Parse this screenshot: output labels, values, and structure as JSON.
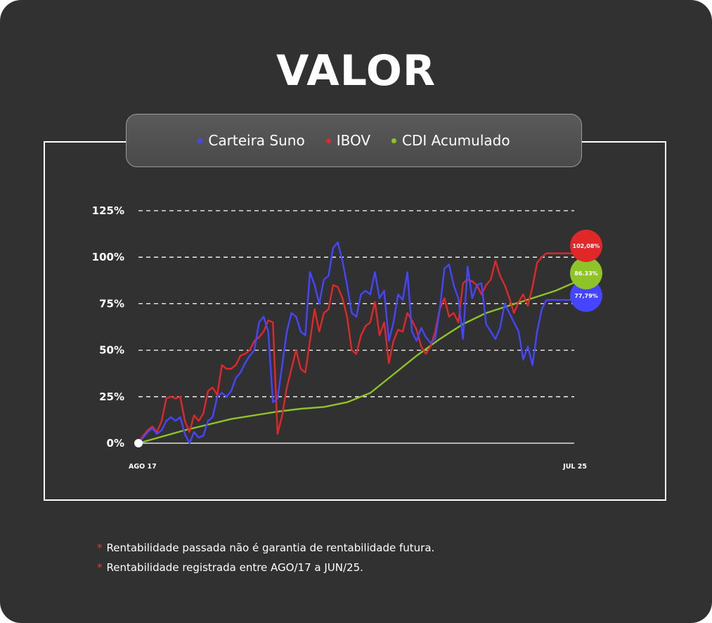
{
  "title": "VALOR",
  "legend": [
    {
      "label": "Carteira Suno",
      "color": "#4545ff"
    },
    {
      "label": "IBOV",
      "color": "#e02828"
    },
    {
      "label": "CDI Acumulado",
      "color": "#8ec32a"
    }
  ],
  "notes": [
    "Rentabilidade passada não é garantia de rentabilidade futura.",
    "Rentabilidade registrada entre AGO/17 a JUN/25."
  ],
  "chart_data": {
    "type": "line",
    "ylim": [
      0,
      125
    ],
    "yticks": [
      "0%",
      "25%",
      "50%",
      "75%",
      "100%",
      "125%"
    ],
    "ytick_values": [
      0,
      25,
      50,
      75,
      100,
      125
    ],
    "xlim": [
      0,
      94
    ],
    "xlabels": [
      {
        "x": 0,
        "label": "AGO 17"
      },
      {
        "x": 94,
        "label": "JUL 25"
      }
    ],
    "grid": "horizontal dashed",
    "series": [
      {
        "name": "Carteira Suno",
        "color": "#4545ff",
        "end_label": "77,79%",
        "x": [
          0,
          1,
          2,
          3,
          4,
          5,
          6,
          7,
          8,
          9,
          10,
          11,
          12,
          13,
          14,
          15,
          16,
          17,
          18,
          19,
          20,
          21,
          22,
          23,
          24,
          25,
          26,
          27,
          28,
          29,
          30,
          31,
          32,
          33,
          34,
          35,
          36,
          37,
          38,
          39,
          40,
          41,
          42,
          43,
          44,
          45,
          46,
          47,
          48,
          49,
          50,
          51,
          52,
          53,
          54,
          55,
          56,
          57,
          58,
          59,
          60,
          61,
          62,
          63,
          64,
          65,
          66,
          67,
          68,
          69,
          70,
          71,
          72,
          73,
          74,
          75,
          76,
          77,
          78,
          79,
          80,
          81,
          82,
          83,
          84,
          85,
          86,
          87,
          88,
          89,
          90,
          91,
          92,
          93,
          94
        ],
        "y": [
          0,
          3,
          6,
          8,
          5,
          7,
          12,
          14,
          12,
          14,
          5,
          0,
          6,
          3,
          4,
          12,
          14,
          25,
          27,
          25,
          28,
          35,
          38,
          43,
          47,
          50,
          65,
          68,
          60,
          22,
          24,
          42,
          60,
          70,
          68,
          60,
          58,
          92,
          85,
          75,
          88,
          90,
          105,
          108,
          98,
          85,
          70,
          68,
          80,
          82,
          80,
          92,
          78,
          82,
          55,
          65,
          80,
          77,
          92,
          60,
          55,
          62,
          57,
          54,
          56,
          72,
          94,
          96,
          85,
          78,
          56,
          95,
          78,
          85,
          86,
          64,
          60,
          56,
          62,
          75,
          70,
          65,
          60,
          45,
          52,
          42,
          60,
          72,
          77,
          77,
          77,
          77,
          77,
          77,
          77.79
        ]
      },
      {
        "name": "IBOV",
        "color": "#e02828",
        "end_label": "102,08%",
        "x": [
          0,
          1,
          2,
          3,
          4,
          5,
          6,
          7,
          8,
          9,
          10,
          11,
          12,
          13,
          14,
          15,
          16,
          17,
          18,
          19,
          20,
          21,
          22,
          23,
          24,
          25,
          26,
          27,
          28,
          29,
          30,
          31,
          32,
          33,
          34,
          35,
          36,
          37,
          38,
          39,
          40,
          41,
          42,
          43,
          44,
          45,
          46,
          47,
          48,
          49,
          50,
          51,
          52,
          53,
          54,
          55,
          56,
          57,
          58,
          59,
          60,
          61,
          62,
          63,
          64,
          65,
          66,
          67,
          68,
          69,
          70,
          71,
          72,
          73,
          74,
          75,
          76,
          77,
          78,
          79,
          80,
          81,
          82,
          83,
          84,
          85,
          86,
          87,
          88,
          89,
          90,
          91,
          92,
          93,
          94
        ],
        "y": [
          0,
          4,
          7,
          9,
          6,
          12,
          24,
          25,
          24,
          25,
          12,
          6,
          15,
          12,
          16,
          28,
          30,
          26,
          42,
          40,
          40,
          42,
          47,
          48,
          50,
          55,
          57,
          60,
          66,
          65,
          5,
          15,
          30,
          40,
          50,
          40,
          38,
          55,
          72,
          60,
          70,
          72,
          85,
          84,
          78,
          68,
          50,
          48,
          58,
          63,
          65,
          76,
          58,
          65,
          43,
          55,
          61,
          60,
          70,
          66,
          61,
          52,
          48,
          52,
          60,
          72,
          78,
          68,
          70,
          65,
          86,
          88,
          87,
          85,
          80,
          85,
          88,
          98,
          90,
          85,
          78,
          70,
          76,
          80,
          74,
          84,
          97,
          100,
          102.08,
          102.08,
          102.08,
          102.08,
          102.08,
          102.08,
          102.08
        ]
      },
      {
        "name": "CDI Acumulado",
        "color": "#8ec32a",
        "end_label": "86.33%",
        "x": [
          0,
          10,
          20,
          30,
          35,
          40,
          45,
          50,
          55,
          60,
          65,
          70,
          75,
          80,
          85,
          90,
          94
        ],
        "y": [
          0,
          7,
          13,
          17,
          18.5,
          19.5,
          22,
          27,
          37,
          47,
          56,
          64,
          70,
          74,
          78,
          82,
          86.33
        ]
      }
    ]
  }
}
